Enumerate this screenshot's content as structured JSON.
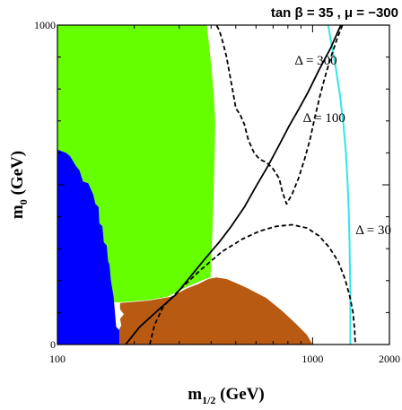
{
  "chart_data": {
    "type": "area",
    "title": "tan β = 35 ,  μ = −300",
    "xlabel": {
      "main": "m",
      "sub": "1/2",
      "unit": " (GeV)"
    },
    "ylabel": {
      "main": "m",
      "sub": "0",
      "unit": " (GeV)"
    },
    "xlim": [
      100,
      2000
    ],
    "ylim": [
      0,
      1000
    ],
    "x_ticks": [
      {
        "value": 100,
        "label": "100"
      },
      {
        "value": 1000,
        "label": "1000"
      },
      {
        "value": 2000,
        "label": "2000"
      }
    ],
    "y_ticks": [
      {
        "value": 0,
        "label": "0"
      },
      {
        "value": 1000,
        "label": "1000"
      }
    ],
    "grid": false,
    "colors": {
      "green_region": "#66ff00",
      "blue_region": "#0000ff",
      "brown_region": "#b85a12",
      "cyan_line": "#33e6e6",
      "contour_line": "#000000"
    },
    "regions": [
      {
        "color_key": "green_region",
        "points": [
          [
            100,
            1000
          ],
          [
            385,
            1000
          ],
          [
            390,
            960
          ],
          [
            400,
            880
          ],
          [
            410,
            780
          ],
          [
            415,
            700
          ],
          [
            413,
            600
          ],
          [
            410,
            500
          ],
          [
            405,
            360
          ],
          [
            398,
            210
          ],
          [
            380,
            205
          ],
          [
            320,
            180
          ],
          [
            270,
            150
          ],
          [
            230,
            140
          ],
          [
            175,
            132
          ],
          [
            100,
            130
          ]
        ]
      },
      {
        "color_key": "blue_region",
        "points": [
          [
            100,
            610
          ],
          [
            108,
            600
          ],
          [
            112,
            590
          ],
          [
            118,
            560
          ],
          [
            122,
            545
          ],
          [
            126,
            510
          ],
          [
            132,
            505
          ],
          [
            138,
            470
          ],
          [
            141,
            440
          ],
          [
            145,
            430
          ],
          [
            146,
            380
          ],
          [
            150,
            370
          ],
          [
            152,
            320
          ],
          [
            156,
            310
          ],
          [
            158,
            260
          ],
          [
            160,
            250
          ],
          [
            162,
            200
          ],
          [
            166,
            150
          ],
          [
            168,
            100
          ],
          [
            170,
            55
          ],
          [
            175,
            45
          ],
          [
            175,
            0
          ],
          [
            100,
            0
          ]
        ]
      },
      {
        "color_key": "brown_region",
        "points": [
          [
            175,
            0
          ],
          [
            175,
            50
          ],
          [
            178,
            60
          ],
          [
            176,
            80
          ],
          [
            182,
            95
          ],
          [
            176,
            110
          ],
          [
            176,
            130
          ],
          [
            230,
            138
          ],
          [
            280,
            150
          ],
          [
            320,
            175
          ],
          [
            358,
            190
          ],
          [
            390,
            205
          ],
          [
            420,
            210
          ],
          [
            460,
            205
          ],
          [
            510,
            190
          ],
          [
            560,
            175
          ],
          [
            660,
            145
          ],
          [
            760,
            105
          ],
          [
            860,
            65
          ],
          [
            950,
            30
          ],
          [
            1000,
            0
          ]
        ]
      }
    ],
    "lines": [
      {
        "name": "",
        "color_key": "cyan_line",
        "style": "solid",
        "points": [
          [
            1150,
            1000
          ],
          [
            1180,
            950
          ],
          [
            1230,
            870
          ],
          [
            1280,
            780
          ],
          [
            1320,
            690
          ],
          [
            1350,
            600
          ],
          [
            1370,
            510
          ],
          [
            1385,
            420
          ],
          [
            1395,
            330
          ],
          [
            1400,
            250
          ],
          [
            1405,
            180
          ],
          [
            1405,
            0
          ]
        ]
      },
      {
        "name": "Δ = 100",
        "color_key": "contour_line",
        "style": "solid",
        "points": [
          [
            1290,
            1000
          ],
          [
            1180,
            930
          ],
          [
            1060,
            860
          ],
          [
            960,
            790
          ],
          [
            880,
            735
          ],
          [
            810,
            685
          ],
          [
            740,
            625
          ],
          [
            670,
            560
          ],
          [
            600,
            495
          ],
          [
            540,
            430
          ],
          [
            480,
            370
          ],
          [
            430,
            320
          ],
          [
            380,
            270
          ],
          [
            330,
            210
          ],
          [
            290,
            155
          ],
          [
            250,
            110
          ],
          [
            210,
            55
          ],
          [
            185,
            0
          ]
        ]
      },
      {
        "name": "Δ = 300",
        "color_key": "contour_line",
        "style": "dashed",
        "points": [
          [
            1310,
            1000
          ],
          [
            1250,
            960
          ],
          [
            1180,
            900
          ],
          [
            1120,
            840
          ],
          [
            1070,
            780
          ],
          [
            1020,
            710
          ],
          [
            975,
            640
          ],
          [
            930,
            580
          ],
          [
            880,
            520
          ],
          [
            830,
            470
          ],
          [
            790,
            440
          ],
          [
            760,
            480
          ],
          [
            740,
            520
          ],
          [
            700,
            550
          ],
          [
            660,
            570
          ],
          [
            620,
            580
          ],
          [
            590,
            600
          ],
          [
            560,
            640
          ],
          [
            540,
            690
          ],
          [
            520,
            720
          ],
          [
            500,
            740
          ],
          [
            490,
            780
          ],
          [
            480,
            820
          ],
          [
            470,
            860
          ],
          [
            460,
            900
          ],
          [
            450,
            930
          ],
          [
            440,
            960
          ],
          [
            430,
            985
          ],
          [
            420,
            1000
          ]
        ]
      },
      {
        "name": "Δ = 30",
        "color_key": "contour_line",
        "style": "dashed",
        "points": [
          [
            230,
            0
          ],
          [
            240,
            60
          ],
          [
            260,
            120
          ],
          [
            300,
            170
          ],
          [
            360,
            230
          ],
          [
            440,
            290
          ],
          [
            530,
            330
          ],
          [
            620,
            355
          ],
          [
            720,
            370
          ],
          [
            830,
            375
          ],
          [
            950,
            365
          ],
          [
            1060,
            340
          ],
          [
            1160,
            305
          ],
          [
            1260,
            260
          ],
          [
            1340,
            205
          ],
          [
            1400,
            150
          ],
          [
            1440,
            100
          ],
          [
            1460,
            50
          ],
          [
            1470,
            0
          ]
        ]
      }
    ],
    "annotations": [
      {
        "text": "Δ = 300",
        "x": 1030,
        "y": 890
      },
      {
        "text": "Δ = 100",
        "x": 1110,
        "y": 710
      },
      {
        "text": "Δ = 30",
        "x": 1730,
        "y": 360
      }
    ]
  }
}
